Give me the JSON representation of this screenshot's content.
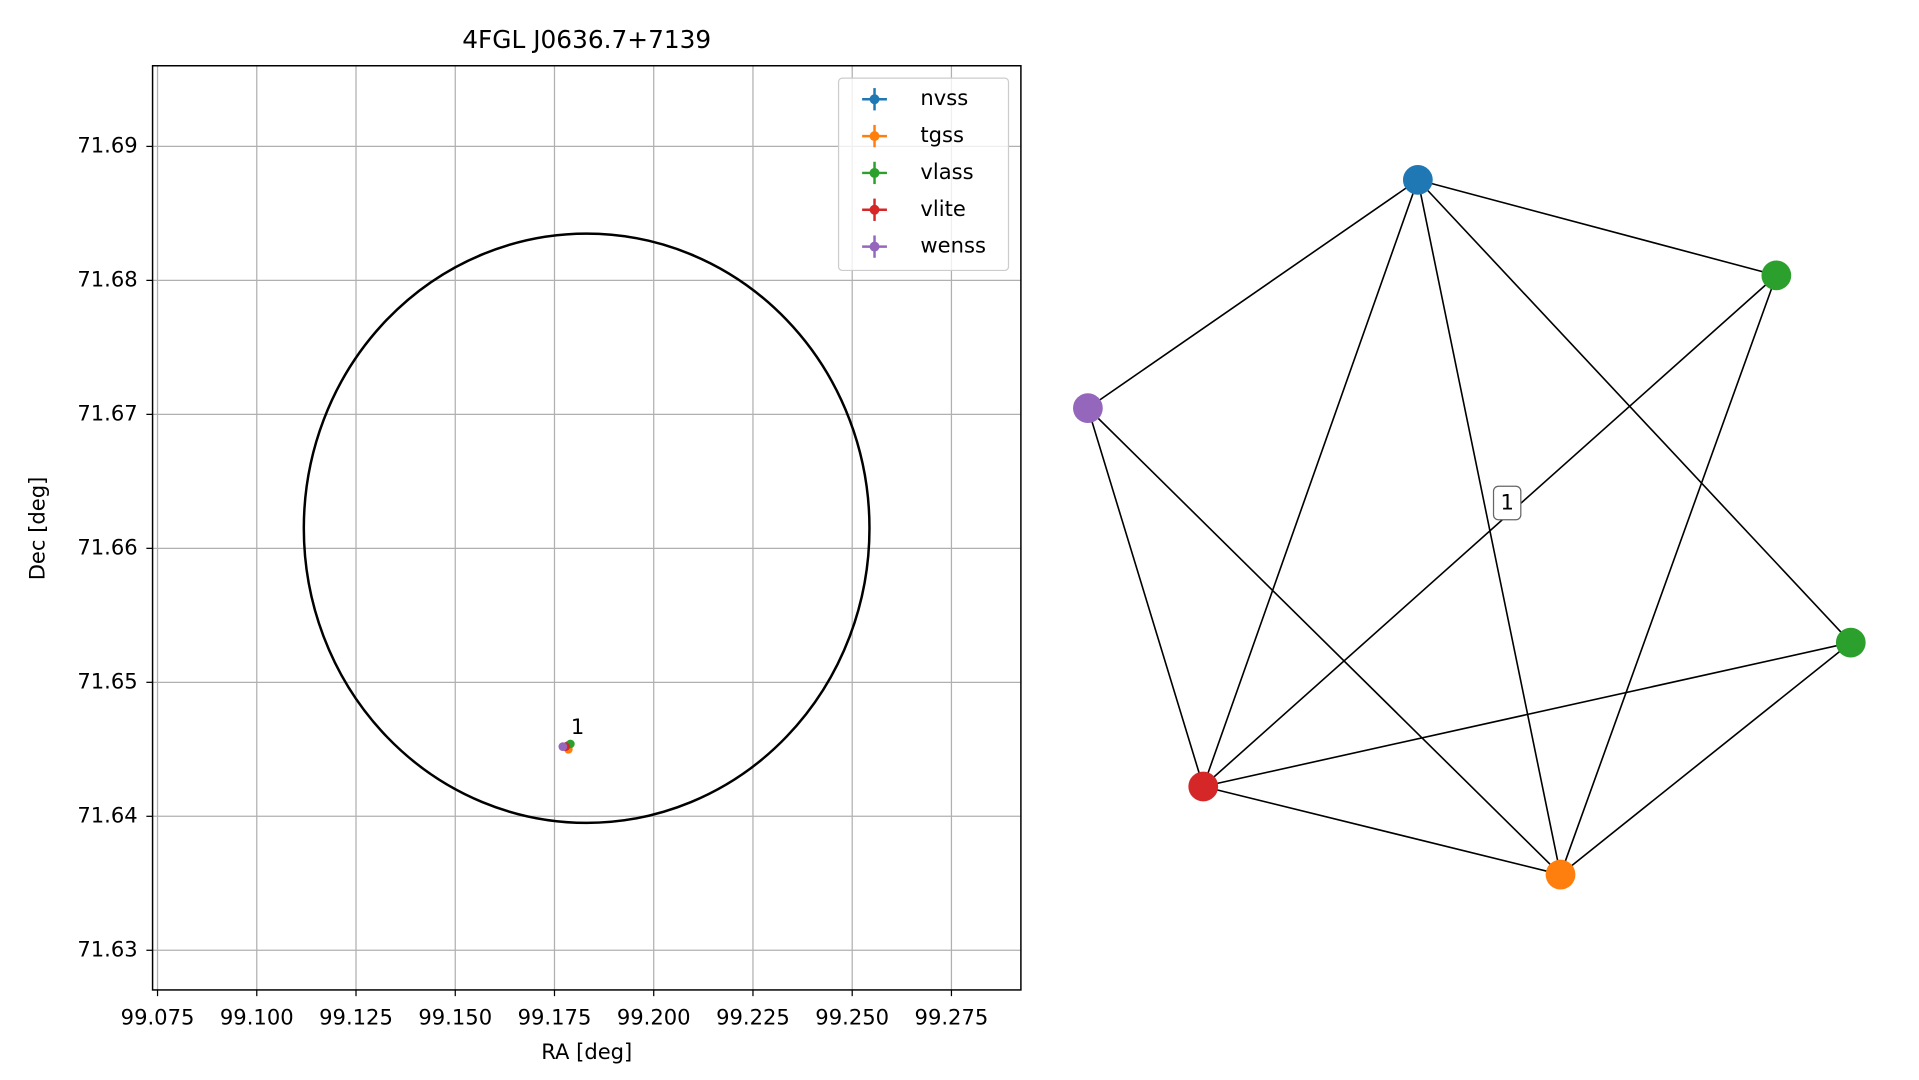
{
  "chart_data": {
    "type": "scatter",
    "title": "4FGL J0636.7+7139",
    "x_label": "RA [deg]",
    "y_label": "Dec [deg]",
    "xlim": [
      99.07375,
      99.2925
    ],
    "ylim": [
      71.62704,
      71.69602
    ],
    "xticks": [
      99.075,
      {
        "value": 99.1,
        "label": "99.100"
      },
      99.125,
      {
        "value": 99.15,
        "label": "99.150"
      },
      99.175,
      {
        "value": 99.2,
        "label": "99.200"
      },
      99.225,
      {
        "value": 99.25,
        "label": "99.250"
      },
      99.275
    ],
    "yticks": [
      71.63,
      71.64,
      71.65,
      71.66,
      71.67,
      71.68,
      71.69
    ],
    "grid": true,
    "legend": "upper right",
    "circle": {
      "center_x": 99.1831,
      "center_y": 71.6615,
      "radius_x": 0.07125,
      "radius_y": 0.02199
    },
    "annotation": "1",
    "series": [
      {
        "name": "nvss",
        "color": "#1f77b4",
        "x": [
          99.1785
        ],
        "values": [
          71.6453
        ]
      },
      {
        "name": "tgss",
        "color": "#ff7f0e",
        "x": [
          99.1785
        ],
        "values": [
          71.645
        ]
      },
      {
        "name": "vlass",
        "color": "#2ca02c",
        "x": [
          99.179
        ],
        "values": [
          71.6454
        ]
      },
      {
        "name": "vlite",
        "color": "#d62728",
        "x": [
          99.1778
        ],
        "values": [
          71.6452
        ]
      },
      {
        "name": "wenss",
        "color": "#9467bd",
        "x": [
          99.1771
        ],
        "values": [
          71.6452
        ]
      }
    ]
  },
  "graph": {
    "nodes": [
      {
        "color": "#1f77b4"
      },
      {
        "color": "#2ca02c"
      },
      {
        "color": "#9467bd"
      },
      {
        "color": "#2ca02c"
      },
      {
        "color": "#d62728"
      },
      {
        "color": "#ff7f0e"
      }
    ],
    "edges": [
      [
        0,
        1
      ],
      [
        0,
        2
      ],
      [
        0,
        4
      ],
      [
        0,
        5
      ],
      [
        0,
        3
      ],
      [
        1,
        4
      ],
      [
        1,
        5
      ],
      [
        2,
        4
      ],
      [
        2,
        5
      ],
      [
        3,
        4
      ],
      [
        3,
        5
      ],
      [
        4,
        5
      ]
    ],
    "edge_label": "1"
  }
}
